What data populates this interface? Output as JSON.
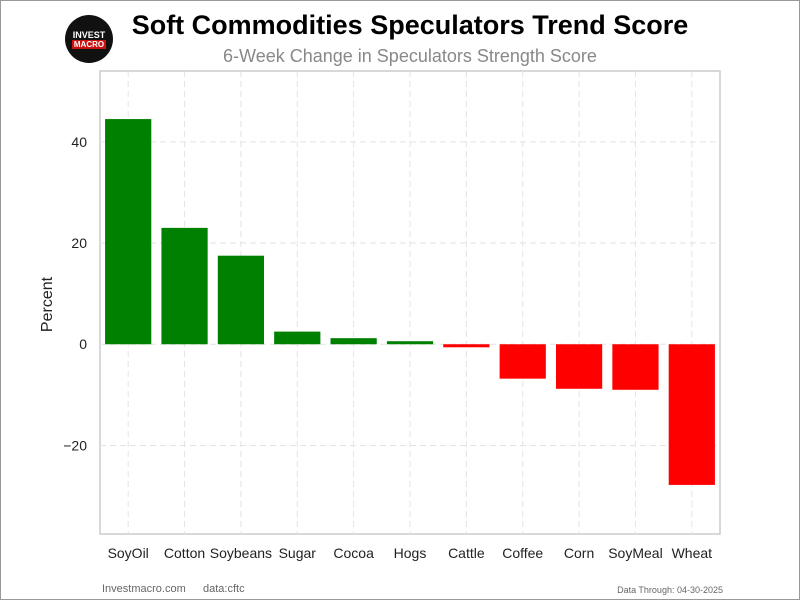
{
  "header": {
    "logo_top": "INVEST",
    "logo_bottom": "MACRO",
    "title": "Soft Commodities Speculators Trend Score",
    "subtitle": "6-Week Change in Speculators Strength Score"
  },
  "footer": {
    "site": "Investmacro.com",
    "source": "data:cftc",
    "data_through": "Data Through: 04-30-2025"
  },
  "colors": {
    "positive": "#008000",
    "negative": "#ff0000",
    "grid": "#e3e3e3",
    "axis_frame": "#cccccc"
  },
  "chart_data": {
    "type": "bar",
    "title": "Soft Commodities Speculators Trend Score",
    "subtitle": "6-Week Change in Speculators Strength Score",
    "xlabel": "",
    "ylabel": "Percent",
    "categories": [
      "SoyOil",
      "Cotton",
      "Soybeans",
      "Sugar",
      "Cocoa",
      "Hogs",
      "Cattle",
      "Coffee",
      "Corn",
      "SoyMeal",
      "Wheat"
    ],
    "values": [
      44.5,
      23,
      17.5,
      2.5,
      1.2,
      0.6,
      -0.6,
      -6.8,
      -8.8,
      -9,
      -27.8
    ],
    "yticks": [
      40,
      20,
      0,
      -20
    ],
    "ytick_labels": [
      "40",
      "20",
      "0",
      "−20"
    ],
    "ylim": [
      -37.5,
      54
    ],
    "grid": true,
    "legend": "none"
  }
}
